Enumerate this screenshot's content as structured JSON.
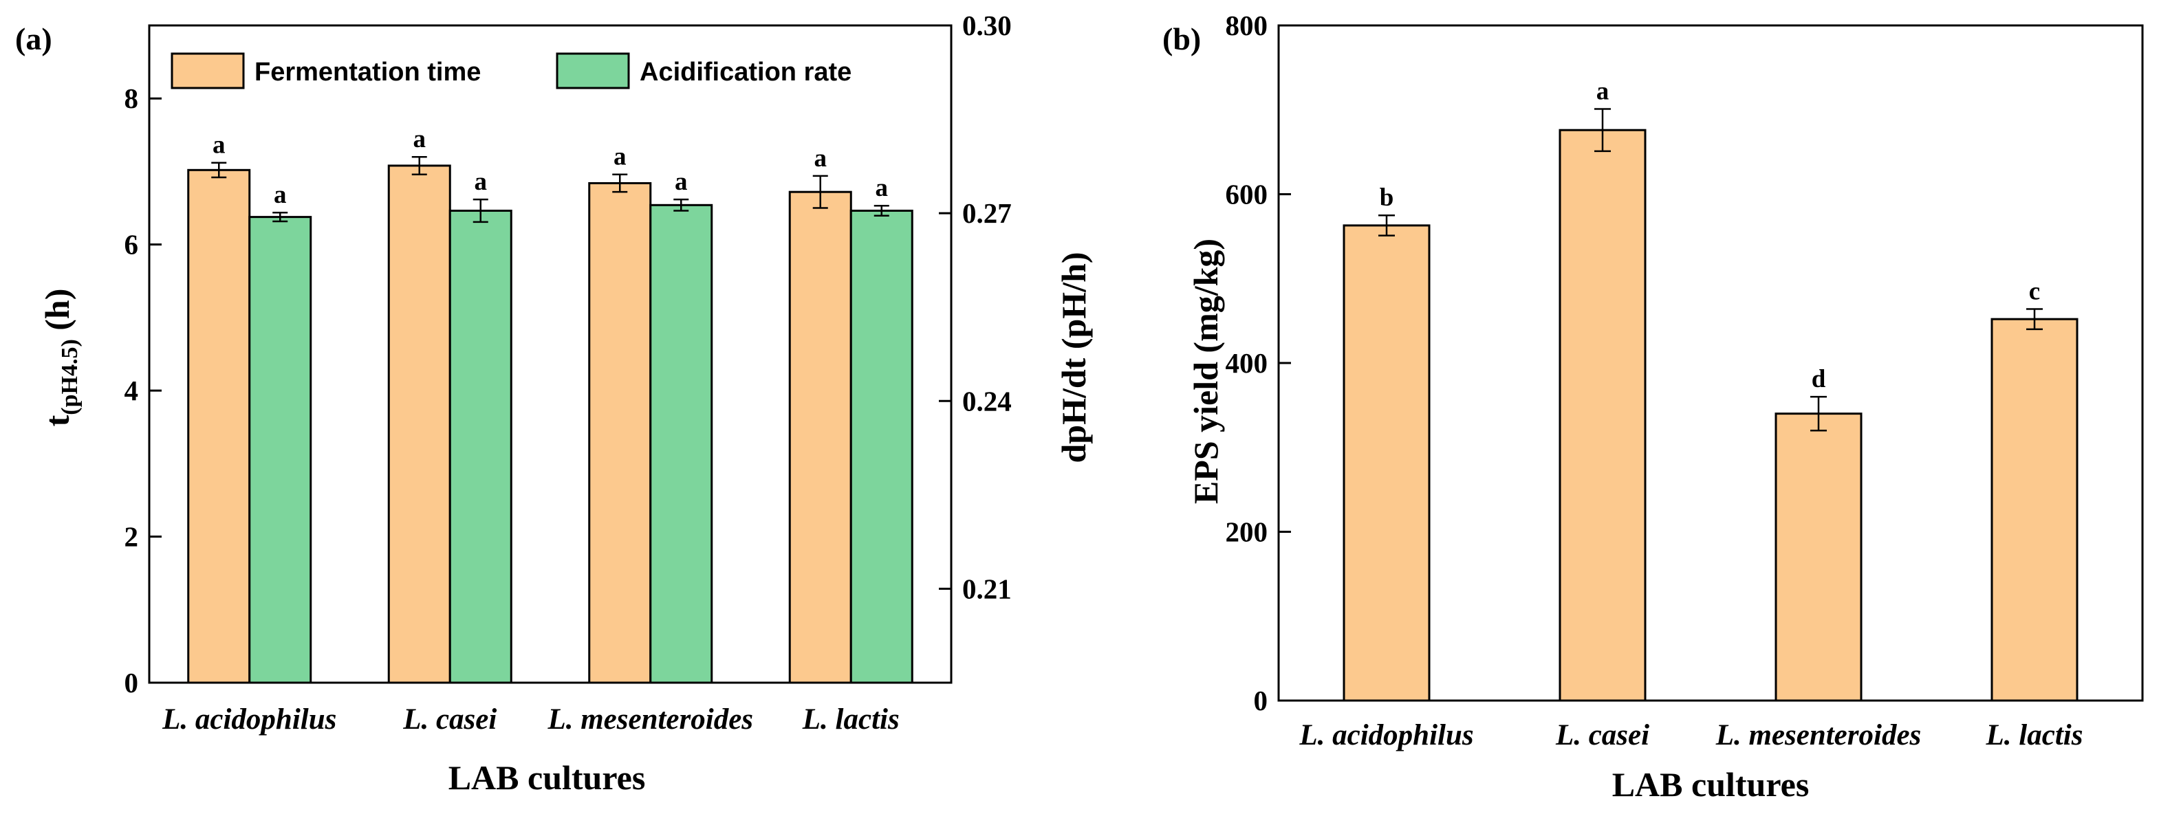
{
  "colors": {
    "fermentation": "#FCC98E",
    "acidification": "#7DD59C",
    "eps": "#FCC98E",
    "stroke": "#000000"
  },
  "chart_data": [
    {
      "panel": "(a)",
      "type": "bar",
      "categories": [
        "L. acidophilus",
        "L. casei",
        "L. mesenteroides",
        "L. lactis"
      ],
      "xlabel": "LAB cultures",
      "ylabel_main": "t",
      "ylabel_sub": "(pH4.5)",
      "ylabel_unit": " (h)",
      "ylabel_right": "dpH/dt  (pH/h)",
      "ylim": [
        0,
        9
      ],
      "yticks": [
        0,
        2,
        4,
        6,
        8
      ],
      "ylim_right": [
        0.195,
        0.3
      ],
      "yticks_right": [
        "0.21",
        "0.24",
        "0.27",
        "0.30"
      ],
      "legend_placement": "top",
      "series": [
        {
          "name": "Fermentation time",
          "axis": "left",
          "values": [
            7.02,
            7.08,
            6.84,
            6.72
          ],
          "errors": [
            0.1,
            0.12,
            0.12,
            0.22
          ],
          "labels": [
            "a",
            "a",
            "a",
            "a"
          ]
        },
        {
          "name": "Acidification rate",
          "axis": "right",
          "values": [
            0.2694,
            0.2704,
            0.2713,
            0.2704
          ],
          "errors": [
            0.0007,
            0.0018,
            0.0009,
            0.0008
          ],
          "labels": [
            "a",
            "a",
            "a",
            "a"
          ]
        }
      ]
    },
    {
      "panel": "(b)",
      "type": "bar",
      "categories": [
        "L. acidophilus",
        "L. casei",
        "L. mesenteroides",
        "L. lactis"
      ],
      "xlabel": "LAB cultures",
      "ylabel": "EPS yield (mg/kg)",
      "ylim": [
        0,
        800
      ],
      "yticks": [
        0,
        200,
        400,
        600,
        800
      ],
      "series": [
        {
          "values": [
            563,
            676,
            340,
            452
          ],
          "errors": [
            12,
            25,
            20,
            12
          ],
          "labels": [
            "b",
            "a",
            "d",
            "c"
          ]
        }
      ]
    }
  ]
}
